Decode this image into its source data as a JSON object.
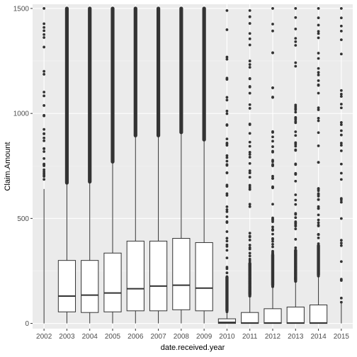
{
  "chart_data": {
    "type": "box",
    "title": "",
    "xlabel": "date.received.year",
    "ylabel": "Claim.Amount",
    "ylim": [
      -25,
      1520
    ],
    "y_ticks": [
      0,
      500,
      1000,
      1500
    ],
    "y_tick_labels": [
      "0",
      "500",
      "1000",
      "1500"
    ],
    "grid": true,
    "legend": "none",
    "categories": [
      "2002",
      "2003",
      "2004",
      "2005",
      "2006",
      "2007",
      "2008",
      "2009",
      "2010",
      "2011",
      "2012",
      "2013",
      "2014",
      "2015"
    ],
    "boxes": [
      {
        "category": "2002",
        "min": 0,
        "q1": null,
        "median": null,
        "q3": null,
        "max": 640,
        "outlier_min": 680,
        "outlier_max": 1500,
        "outlier_density": "sparse"
      },
      {
        "category": "2003",
        "min": 0,
        "q1": 55,
        "median": 130,
        "q3": 300,
        "max": 665,
        "outlier_min": 670,
        "outlier_max": 1500,
        "outlier_density": "dense"
      },
      {
        "category": "2004",
        "min": 0,
        "q1": 52,
        "median": 135,
        "q3": 300,
        "max": 670,
        "outlier_min": 675,
        "outlier_max": 1500,
        "outlier_density": "dense"
      },
      {
        "category": "2005",
        "min": 0,
        "q1": 55,
        "median": 145,
        "q3": 335,
        "max": 765,
        "outlier_min": 770,
        "outlier_max": 1500,
        "outlier_density": "dense"
      },
      {
        "category": "2006",
        "min": 0,
        "q1": 60,
        "median": 165,
        "q3": 392,
        "max": 890,
        "outlier_min": 895,
        "outlier_max": 1500,
        "outlier_density": "dense"
      },
      {
        "category": "2007",
        "min": 0,
        "q1": 60,
        "median": 178,
        "q3": 392,
        "max": 890,
        "outlier_min": 895,
        "outlier_max": 1500,
        "outlier_density": "dense"
      },
      {
        "category": "2008",
        "min": 0,
        "q1": 65,
        "median": 182,
        "q3": 405,
        "max": 905,
        "outlier_min": 910,
        "outlier_max": 1500,
        "outlier_density": "dense"
      },
      {
        "category": "2009",
        "min": 0,
        "q1": 60,
        "median": 168,
        "q3": 385,
        "max": 870,
        "outlier_min": 875,
        "outlier_max": 1500,
        "outlier_density": "dense"
      },
      {
        "category": "2010",
        "min": 0,
        "q1": 0,
        "median": 5,
        "q3": 22,
        "max": 50,
        "outlier_min": 55,
        "outlier_max": 1490,
        "outlier_density": "medium"
      },
      {
        "category": "2011",
        "min": 0,
        "q1": 0,
        "median": 2,
        "q3": 52,
        "max": 125,
        "outlier_min": 130,
        "outlier_max": 1490,
        "outlier_density": "medium"
      },
      {
        "category": "2012",
        "min": 0,
        "q1": 0,
        "median": 2,
        "q3": 70,
        "max": 170,
        "outlier_min": 175,
        "outlier_max": 1500,
        "outlier_density": "medium"
      },
      {
        "category": "2013",
        "min": 0,
        "q1": 0,
        "median": 2,
        "q3": 78,
        "max": 195,
        "outlier_min": 200,
        "outlier_max": 1500,
        "outlier_density": "medium"
      },
      {
        "category": "2014",
        "min": 0,
        "q1": 0,
        "median": 2,
        "q3": 88,
        "max": 220,
        "outlier_min": 225,
        "outlier_max": 1500,
        "outlier_density": "medium"
      },
      {
        "category": "2015",
        "min": 0,
        "q1": null,
        "median": null,
        "q3": null,
        "max": 95,
        "outlier_min": 100,
        "outlier_max": 1500,
        "outlier_density": "sparse"
      }
    ]
  }
}
